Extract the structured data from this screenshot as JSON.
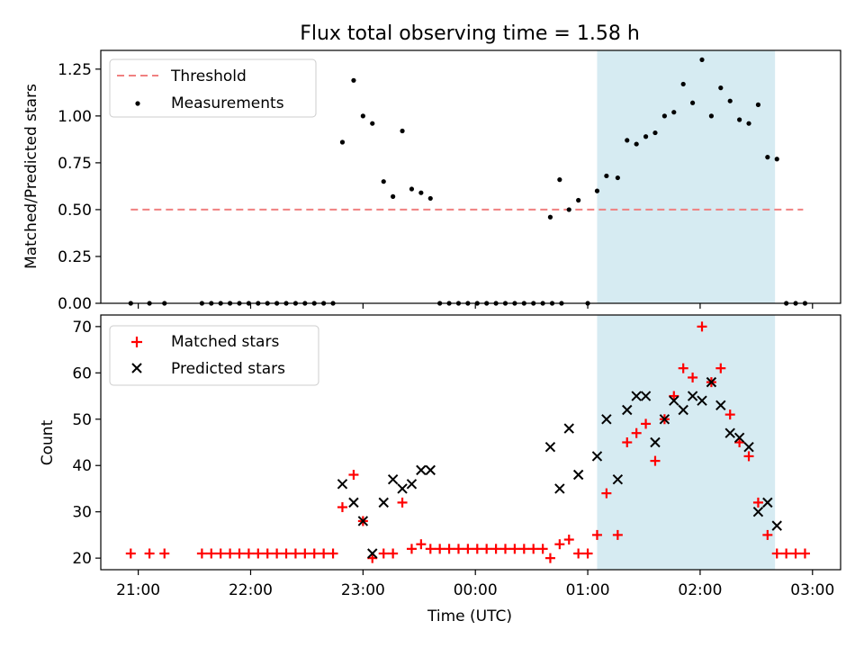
{
  "chart_data": [
    {
      "type": "scatter",
      "title": "Flux total observing time = 1.58 h",
      "ylabel": "Matched/Predicted stars",
      "xlabel": "",
      "xlim": [
        "20:40",
        "03:15"
      ],
      "ylim": [
        0,
        1.35
      ],
      "x_ticks": [
        "21:00",
        "22:00",
        "23:00",
        "00:00",
        "01:00",
        "02:00",
        "03:00"
      ],
      "y_ticks": [
        "0.00",
        "0.25",
        "0.50",
        "0.75",
        "1.00",
        "1.25"
      ],
      "highlight_span": [
        "01:05",
        "02:40"
      ],
      "highlight_color": "#add8e6",
      "legend_position": "upper-left",
      "series": [
        {
          "name": "Threshold",
          "style": "dashed-line",
          "color": "#f08080",
          "x": [
            "20:56",
            "02:55"
          ],
          "y": [
            0.5,
            0.5
          ]
        },
        {
          "name": "Measurements",
          "style": "dot",
          "color": "#000000",
          "points": [
            [
              "20:56",
              0
            ],
            [
              "21:06",
              0
            ],
            [
              "21:14",
              0
            ],
            [
              "21:34",
              0
            ],
            [
              "21:39",
              0
            ],
            [
              "21:44",
              0
            ],
            [
              "21:49",
              0
            ],
            [
              "21:54",
              0
            ],
            [
              "21:59",
              0
            ],
            [
              "22:04",
              0
            ],
            [
              "22:09",
              0
            ],
            [
              "22:14",
              0
            ],
            [
              "22:19",
              0
            ],
            [
              "22:24",
              0
            ],
            [
              "22:29",
              0
            ],
            [
              "22:34",
              0
            ],
            [
              "22:39",
              0
            ],
            [
              "22:44",
              0
            ],
            [
              "22:49",
              0.86
            ],
            [
              "22:55",
              1.19
            ],
            [
              "23:00",
              1.0
            ],
            [
              "23:05",
              0.96
            ],
            [
              "23:11",
              0.65
            ],
            [
              "23:16",
              0.57
            ],
            [
              "23:21",
              0.92
            ],
            [
              "23:26",
              0.61
            ],
            [
              "23:31",
              0.59
            ],
            [
              "23:36",
              0.56
            ],
            [
              "23:41",
              0
            ],
            [
              "23:46",
              0
            ],
            [
              "23:51",
              0
            ],
            [
              "23:56",
              0
            ],
            [
              "00:01",
              0
            ],
            [
              "00:06",
              0
            ],
            [
              "00:11",
              0
            ],
            [
              "00:16",
              0
            ],
            [
              "00:21",
              0
            ],
            [
              "00:26",
              0
            ],
            [
              "00:31",
              0
            ],
            [
              "00:36",
              0
            ],
            [
              "00:41",
              0
            ],
            [
              "00:46",
              0
            ],
            [
              "00:40",
              0.46
            ],
            [
              "00:45",
              0.66
            ],
            [
              "00:50",
              0.5
            ],
            [
              "00:55",
              0.55
            ],
            [
              "01:00",
              0
            ],
            [
              "01:05",
              0.6
            ],
            [
              "01:10",
              0.68
            ],
            [
              "01:16",
              0.67
            ],
            [
              "01:21",
              0.87
            ],
            [
              "01:26",
              0.85
            ],
            [
              "01:31",
              0.89
            ],
            [
              "01:36",
              0.91
            ],
            [
              "01:41",
              1.0
            ],
            [
              "01:46",
              1.02
            ],
            [
              "01:51",
              1.17
            ],
            [
              "01:56",
              1.07
            ],
            [
              "02:01",
              1.3
            ],
            [
              "02:06",
              1.0
            ],
            [
              "02:11",
              1.15
            ],
            [
              "02:16",
              1.08
            ],
            [
              "02:21",
              0.98
            ],
            [
              "02:26",
              0.96
            ],
            [
              "02:31",
              1.06
            ],
            [
              "02:36",
              0.78
            ],
            [
              "02:41",
              0.77
            ],
            [
              "02:46",
              0
            ],
            [
              "02:51",
              0
            ],
            [
              "02:56",
              0
            ]
          ]
        }
      ]
    },
    {
      "type": "scatter",
      "title": "",
      "ylabel": "Count",
      "xlabel": "Time (UTC)",
      "xlim": [
        "20:40",
        "03:15"
      ],
      "ylim": [
        17.5,
        72.5
      ],
      "x_ticks": [
        "21:00",
        "22:00",
        "23:00",
        "00:00",
        "01:00",
        "02:00",
        "03:00"
      ],
      "y_ticks": [
        "20",
        "30",
        "40",
        "50",
        "60",
        "70"
      ],
      "highlight_span": [
        "01:05",
        "02:40"
      ],
      "highlight_color": "#add8e6",
      "legend_position": "upper-left",
      "series": [
        {
          "name": "Matched stars",
          "style": "plus",
          "color": "#ff0000",
          "points": [
            [
              "20:56",
              21
            ],
            [
              "21:06",
              21
            ],
            [
              "21:14",
              21
            ],
            [
              "21:34",
              21
            ],
            [
              "21:39",
              21
            ],
            [
              "21:44",
              21
            ],
            [
              "21:49",
              21
            ],
            [
              "21:54",
              21
            ],
            [
              "21:59",
              21
            ],
            [
              "22:04",
              21
            ],
            [
              "22:09",
              21
            ],
            [
              "22:14",
              21
            ],
            [
              "22:19",
              21
            ],
            [
              "22:24",
              21
            ],
            [
              "22:29",
              21
            ],
            [
              "22:34",
              21
            ],
            [
              "22:39",
              21
            ],
            [
              "22:44",
              21
            ],
            [
              "22:49",
              31
            ],
            [
              "22:55",
              38
            ],
            [
              "23:00",
              28
            ],
            [
              "23:05",
              20
            ],
            [
              "23:11",
              21
            ],
            [
              "23:16",
              21
            ],
            [
              "23:21",
              32
            ],
            [
              "23:26",
              22
            ],
            [
              "23:31",
              23
            ],
            [
              "23:36",
              22
            ],
            [
              "23:41",
              22
            ],
            [
              "23:46",
              22
            ],
            [
              "23:51",
              22
            ],
            [
              "23:56",
              22
            ],
            [
              "00:01",
              22
            ],
            [
              "00:06",
              22
            ],
            [
              "00:11",
              22
            ],
            [
              "00:16",
              22
            ],
            [
              "00:21",
              22
            ],
            [
              "00:26",
              22
            ],
            [
              "00:31",
              22
            ],
            [
              "00:36",
              22
            ],
            [
              "00:40",
              20
            ],
            [
              "00:45",
              23
            ],
            [
              "00:50",
              24
            ],
            [
              "00:55",
              21
            ],
            [
              "01:00",
              21
            ],
            [
              "01:05",
              25
            ],
            [
              "01:10",
              34
            ],
            [
              "01:16",
              25
            ],
            [
              "01:21",
              45
            ],
            [
              "01:26",
              47
            ],
            [
              "01:31",
              49
            ],
            [
              "01:36",
              41
            ],
            [
              "01:41",
              50
            ],
            [
              "01:46",
              55
            ],
            [
              "01:51",
              61
            ],
            [
              "01:56",
              59
            ],
            [
              "02:01",
              70
            ],
            [
              "02:06",
              58
            ],
            [
              "02:11",
              61
            ],
            [
              "02:16",
              51
            ],
            [
              "02:21",
              45
            ],
            [
              "02:26",
              42
            ],
            [
              "02:31",
              32
            ],
            [
              "02:36",
              25
            ],
            [
              "02:41",
              21
            ],
            [
              "02:46",
              21
            ],
            [
              "02:51",
              21
            ],
            [
              "02:56",
              21
            ]
          ]
        },
        {
          "name": "Predicted stars",
          "style": "cross",
          "color": "#000000",
          "points": [
            [
              "22:49",
              36
            ],
            [
              "22:55",
              32
            ],
            [
              "23:00",
              28
            ],
            [
              "23:05",
              21
            ],
            [
              "23:11",
              32
            ],
            [
              "23:16",
              37
            ],
            [
              "23:21",
              35
            ],
            [
              "23:26",
              36
            ],
            [
              "23:31",
              39
            ],
            [
              "23:36",
              39
            ],
            [
              "00:40",
              44
            ],
            [
              "00:45",
              35
            ],
            [
              "00:50",
              48
            ],
            [
              "00:55",
              38
            ],
            [
              "01:05",
              42
            ],
            [
              "01:10",
              50
            ],
            [
              "01:16",
              37
            ],
            [
              "01:21",
              52
            ],
            [
              "01:26",
              55
            ],
            [
              "01:31",
              55
            ],
            [
              "01:36",
              45
            ],
            [
              "01:41",
              50
            ],
            [
              "01:46",
              54
            ],
            [
              "01:51",
              52
            ],
            [
              "01:56",
              55
            ],
            [
              "02:01",
              54
            ],
            [
              "02:06",
              58
            ],
            [
              "02:11",
              53
            ],
            [
              "02:16",
              47
            ],
            [
              "02:21",
              46
            ],
            [
              "02:26",
              44
            ],
            [
              "02:31",
              30
            ],
            [
              "02:36",
              32
            ],
            [
              "02:41",
              27
            ]
          ]
        }
      ]
    }
  ]
}
